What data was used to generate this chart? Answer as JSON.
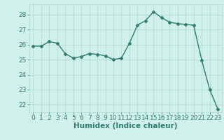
{
  "x": [
    0,
    1,
    2,
    3,
    4,
    5,
    6,
    7,
    8,
    9,
    10,
    11,
    12,
    13,
    14,
    15,
    16,
    17,
    18,
    19,
    20,
    21,
    22,
    23
  ],
  "y": [
    25.9,
    25.9,
    26.2,
    26.1,
    25.4,
    25.1,
    25.2,
    25.4,
    25.35,
    25.25,
    25.0,
    25.1,
    26.1,
    27.3,
    27.6,
    28.2,
    27.8,
    27.5,
    27.4,
    27.35,
    27.3,
    24.95,
    23.0,
    21.7
  ],
  "line_color": "#2e7d6e",
  "marker": "D",
  "marker_size": 2.5,
  "bg_color": "#cff0eb",
  "grid_color": "#aad8d0",
  "xlabel": "Humidex (Indice chaleur)",
  "xlabel_fontsize": 7.5,
  "tick_color": "#2e7d6e",
  "tick_fontsize": 6.5,
  "ylim": [
    21.5,
    28.7
  ],
  "xlim": [
    -0.5,
    23.5
  ],
  "yticks": [
    22,
    23,
    24,
    25,
    26,
    27,
    28
  ],
  "xticks": [
    0,
    1,
    2,
    3,
    4,
    5,
    6,
    7,
    8,
    9,
    10,
    11,
    12,
    13,
    14,
    15,
    16,
    17,
    18,
    19,
    20,
    21,
    22,
    23
  ],
  "line_width": 1.0
}
